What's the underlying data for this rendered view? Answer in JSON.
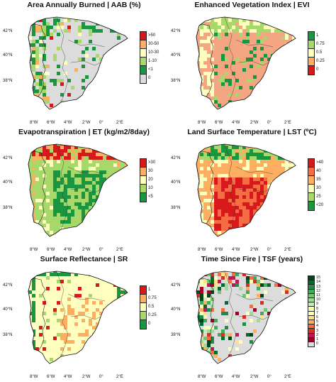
{
  "lat_labels": [
    "42°N",
    "40°N",
    "38°N"
  ],
  "lon_labels": [
    "8°W",
    "6°W",
    "4°W",
    "2°W",
    "0°",
    "2°E"
  ],
  "panels": [
    {
      "id": "aab",
      "title": "Area Annually Burned | AAB (%)",
      "pattern": "sparse",
      "base_color": "#dcdcdc",
      "legend": [
        {
          "label": ">50",
          "color": "#d7191c"
        },
        {
          "label": "30-50",
          "color": "#fdae61"
        },
        {
          "label": "10-30",
          "color": "#ffffbf"
        },
        {
          "label": "1-10",
          "color": "#a6d96a"
        },
        {
          "label": "<1",
          "color": "#1a9641"
        },
        {
          "label": "0",
          "color": "#dcdcdc"
        }
      ]
    },
    {
      "id": "evi",
      "title": "Enhanced Vegetation Index | EVI",
      "pattern": "evi",
      "base_color": "#f4a582",
      "legend": [
        {
          "label": "1",
          "color": "#1a9641"
        },
        {
          "label": "0.75",
          "color": "#a6d96a"
        },
        {
          "label": "0.5",
          "color": "#ffffbf"
        },
        {
          "label": "0.25",
          "color": "#fdae61"
        },
        {
          "label": "0",
          "color": "#d7191c"
        }
      ]
    },
    {
      "id": "et",
      "title": "Evapotranspiration | ET (kg/m2/8day)",
      "pattern": "et",
      "base_color": "#a6d96a",
      "legend": [
        {
          "label": ">30",
          "color": "#d7191c"
        },
        {
          "label": "30",
          "color": "#fdae61"
        },
        {
          "label": "20",
          "color": "#ffffbf"
        },
        {
          "label": "10",
          "color": "#a6d96a"
        },
        {
          "label": "<5",
          "color": "#1a9641"
        }
      ]
    },
    {
      "id": "lst",
      "title": "Land Surface Temperature | LST (ºC)",
      "pattern": "lst",
      "base_color": "#fdae61",
      "legend": [
        {
          "label": ">40",
          "color": "#d7191c"
        },
        {
          "label": "40",
          "color": "#f46d43"
        },
        {
          "label": "35",
          "color": "#fdae61"
        },
        {
          "label": "30",
          "color": "#ffffbf"
        },
        {
          "label": "25",
          "color": "#a6d96a"
        },
        {
          "label": "<20",
          "color": "#1a9641"
        }
      ]
    },
    {
      "id": "sr",
      "title": "Surface Reflectance | SR",
      "pattern": "sr",
      "base_color": "#ffffbf",
      "legend": [
        {
          "label": "1",
          "color": "#d7191c"
        },
        {
          "label": "0.75",
          "color": "#fdae61"
        },
        {
          "label": "0.5",
          "color": "#ffffbf"
        },
        {
          "label": "0.25",
          "color": "#a6d96a"
        },
        {
          "label": "0",
          "color": "#1a9641"
        }
      ]
    },
    {
      "id": "tsf",
      "title": "Time Since Fire | TSF (years)",
      "pattern": "tsf",
      "base_color": "#dcdcdc",
      "legend": [
        {
          "label": "15",
          "color": "#00441b"
        },
        {
          "label": "14",
          "color": "#006d2c"
        },
        {
          "label": "13",
          "color": "#238b45"
        },
        {
          "label": "12",
          "color": "#41ab5d"
        },
        {
          "label": "11",
          "color": "#74c476"
        },
        {
          "label": "10",
          "color": "#a1d99b"
        },
        {
          "label": "9",
          "color": "#c7e9c0"
        },
        {
          "label": "8",
          "color": "#f7fcb9"
        },
        {
          "label": "7",
          "color": "#ffffbf"
        },
        {
          "label": "6",
          "color": "#fee08b"
        },
        {
          "label": "5",
          "color": "#fdae61"
        },
        {
          "label": "4",
          "color": "#f46d43"
        },
        {
          "label": "3",
          "color": "#d73027"
        },
        {
          "label": "2",
          "color": "#c2185b"
        },
        {
          "label": "1",
          "color": "#a50026"
        },
        {
          "label": "0",
          "color": "#dcdcdc"
        }
      ]
    }
  ]
}
